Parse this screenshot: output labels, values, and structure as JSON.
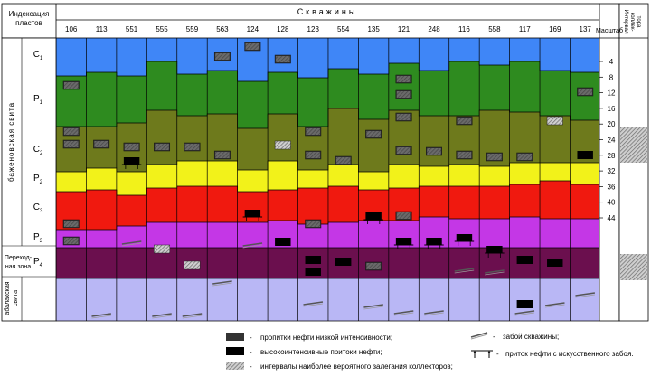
{
  "title": "Скважины",
  "left_header": "Индексация пластов",
  "scale_header": "Масштаб",
  "interval_header": "Интервал коллек-тора",
  "formations": {
    "bazhenov": "баженовская свита",
    "transition": "Переход-ная зона",
    "abalak": "абалакская свита"
  },
  "layers": [
    {
      "main": "C",
      "sub": "1",
      "color": "#3f86f7"
    },
    {
      "main": "P",
      "sub": "1",
      "color": "#2e8b1f"
    },
    {
      "main": "C",
      "sub": "2",
      "color": "#6e7a1c"
    },
    {
      "main": "P",
      "sub": "2",
      "color": "#f2f21a"
    },
    {
      "main": "C",
      "sub": "3",
      "color": "#f0190f"
    },
    {
      "main": "P",
      "sub": "3",
      "color": "#c437e6"
    },
    {
      "main": "P",
      "sub": "4",
      "color": "#6b0f4e"
    },
    {
      "main": "",
      "sub": "",
      "color": "#b9b7f5"
    }
  ],
  "wells": [
    "106",
    "113",
    "551",
    "555",
    "559",
    "563",
    "124",
    "128",
    "123",
    "554",
    "135",
    "121",
    "248",
    "116",
    "558",
    "117",
    "169",
    "137"
  ],
  "scale_ticks": [
    "4",
    "8",
    "12",
    "16",
    "20",
    "24",
    "28",
    "32",
    "36",
    "40",
    "44"
  ],
  "legend": {
    "low_intensity": "пропитки нефти низкой интенсивности;",
    "high_intensity": "высокоинтенсивные притоки нефти;",
    "collector_intervals": "интервалы наиболее вероятного залегания коллекторов;",
    "well_bottom": "забой скважины;",
    "artificial_bottom": "приток нефти с искусственного забоя."
  },
  "colors": {
    "low_marker": "#333333",
    "high_marker": "#000000",
    "hatch": "#888888"
  }
}
